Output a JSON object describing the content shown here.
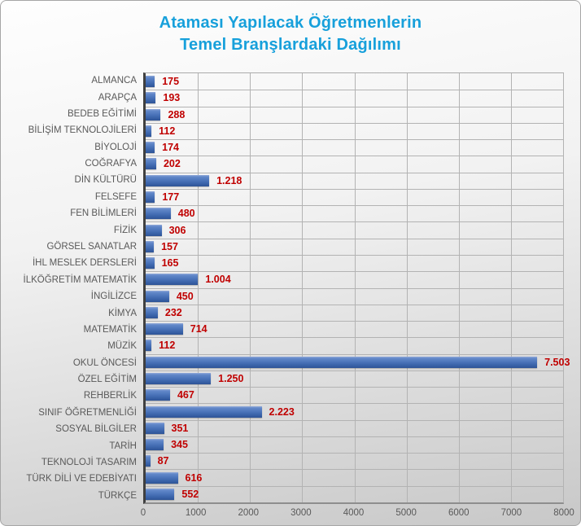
{
  "title": {
    "line1": "Ataması Yapılacak Öğretmenlerin",
    "line2": "Temel Branşlardaki Dağılımı"
  },
  "chart_data": {
    "type": "bar",
    "orientation": "horizontal",
    "title": "Ataması Yapılacak Öğretmenlerin Temel Branşlardaki Dağılımı",
    "xlabel": "",
    "ylabel": "",
    "xlim": [
      0,
      8000
    ],
    "grid": true,
    "legend": false,
    "categories": [
      "ALMANCA",
      "ARAPÇA",
      "BEDEB EĞİTİMİ",
      "BİLİŞİM TEKNOLOJİLERİ",
      "BİYOLOJİ",
      "COĞRAFYA",
      "DİN KÜLTÜRÜ",
      "FELSEFE",
      "FEN BİLİMLERİ",
      "FİZİK",
      "GÖRSEL SANATLAR",
      "İHL MESLEK DERSLERİ",
      "İLKÖĞRETİM MATEMATİK",
      "İNGİLİZCE",
      "KİMYA",
      "MATEMATİK",
      "MÜZİK",
      "OKUL ÖNCESİ",
      "ÖZEL EĞİTİM",
      "REHBERLİK",
      "SINIF ÖĞRETMENLİĞİ",
      "SOSYAL BİLGİLER",
      "TARİH",
      "TEKNOLOJİ TASARIM",
      "TÜRK DİLİ VE EDEBİYATI",
      "TÜRKÇE"
    ],
    "values": [
      175,
      193,
      288,
      112,
      174,
      202,
      1218,
      177,
      480,
      306,
      157,
      165,
      1004,
      450,
      232,
      714,
      112,
      7503,
      1250,
      467,
      2223,
      351,
      345,
      87,
      616,
      552
    ],
    "value_labels": [
      "175",
      "193",
      "288",
      "112",
      "174",
      "202",
      "1.218",
      "177",
      "480",
      "306",
      "157",
      "165",
      "1.004",
      "450",
      "232",
      "714",
      "112",
      "7.503",
      "1.250",
      "467",
      "2.223",
      "351",
      "345",
      "87",
      "616",
      "552"
    ],
    "xticks": [
      0,
      1000,
      2000,
      3000,
      4000,
      5000,
      6000,
      7000,
      8000
    ],
    "xtick_labels": [
      "0",
      "1000",
      "2000",
      "3000",
      "4000",
      "5000",
      "6000",
      "7000",
      "8000"
    ],
    "colors": {
      "bar": "#4d76bb",
      "title": "#17a0db",
      "category_label": "#595959",
      "value_label": "#c00000",
      "gridline": "#b3b3b3",
      "axis_line": "#404040"
    }
  }
}
